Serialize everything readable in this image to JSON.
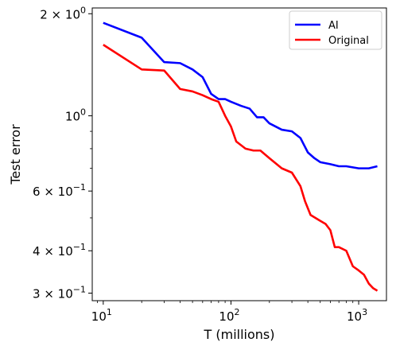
{
  "chart_data": {
    "type": "line",
    "xlabel": "T (millions)",
    "ylabel": "Test error",
    "xscale": "log",
    "yscale": "log",
    "xlim": [
      8.2,
      1650
    ],
    "ylim": [
      0.285,
      2.08
    ],
    "grid": false,
    "legend_placement": "top-right",
    "x_ticks": [
      {
        "value": 10,
        "base": "10",
        "exp": "1"
      },
      {
        "value": 100,
        "base": "10",
        "exp": "2"
      },
      {
        "value": 1000,
        "base": "10",
        "exp": "3"
      }
    ],
    "y_ticks": [
      {
        "value": 2.0,
        "mant": "2 × 10",
        "exp": "0"
      },
      {
        "value": 1.0,
        "mant": "10",
        "exp": "0"
      },
      {
        "value": 0.6,
        "mant": "6 × 10",
        "exp": "−1"
      },
      {
        "value": 0.4,
        "mant": "4 × 10",
        "exp": "−1"
      },
      {
        "value": 0.3,
        "mant": "3 × 10",
        "exp": "−1"
      }
    ],
    "series": [
      {
        "name": "AI",
        "color": "#0000ff",
        "points": [
          [
            10,
            1.88
          ],
          [
            20,
            1.7
          ],
          [
            30,
            1.44
          ],
          [
            40,
            1.43
          ],
          [
            50,
            1.37
          ],
          [
            60,
            1.3
          ],
          [
            70,
            1.16
          ],
          [
            80,
            1.12
          ],
          [
            90,
            1.12
          ],
          [
            100,
            1.1
          ],
          [
            120,
            1.07
          ],
          [
            140,
            1.05
          ],
          [
            160,
            0.99
          ],
          [
            180,
            0.99
          ],
          [
            200,
            0.95
          ],
          [
            250,
            0.91
          ],
          [
            300,
            0.9
          ],
          [
            350,
            0.86
          ],
          [
            400,
            0.78
          ],
          [
            450,
            0.75
          ],
          [
            500,
            0.73
          ],
          [
            600,
            0.72
          ],
          [
            700,
            0.71
          ],
          [
            800,
            0.71
          ],
          [
            1000,
            0.7
          ],
          [
            1200,
            0.7
          ],
          [
            1400,
            0.71
          ]
        ]
      },
      {
        "name": "Original",
        "color": "#ff0000",
        "points": [
          [
            10,
            1.62
          ],
          [
            20,
            1.37
          ],
          [
            30,
            1.36
          ],
          [
            40,
            1.2
          ],
          [
            50,
            1.18
          ],
          [
            60,
            1.15
          ],
          [
            70,
            1.12
          ],
          [
            80,
            1.1
          ],
          [
            90,
            1.0
          ],
          [
            100,
            0.93
          ],
          [
            110,
            0.84
          ],
          [
            130,
            0.8
          ],
          [
            150,
            0.79
          ],
          [
            170,
            0.79
          ],
          [
            200,
            0.75
          ],
          [
            250,
            0.7
          ],
          [
            300,
            0.68
          ],
          [
            350,
            0.62
          ],
          [
            380,
            0.56
          ],
          [
            420,
            0.51
          ],
          [
            500,
            0.49
          ],
          [
            550,
            0.48
          ],
          [
            600,
            0.46
          ],
          [
            650,
            0.41
          ],
          [
            700,
            0.41
          ],
          [
            800,
            0.4
          ],
          [
            900,
            0.36
          ],
          [
            1000,
            0.35
          ],
          [
            1100,
            0.34
          ],
          [
            1200,
            0.32
          ],
          [
            1300,
            0.31
          ],
          [
            1400,
            0.305
          ]
        ]
      }
    ]
  }
}
